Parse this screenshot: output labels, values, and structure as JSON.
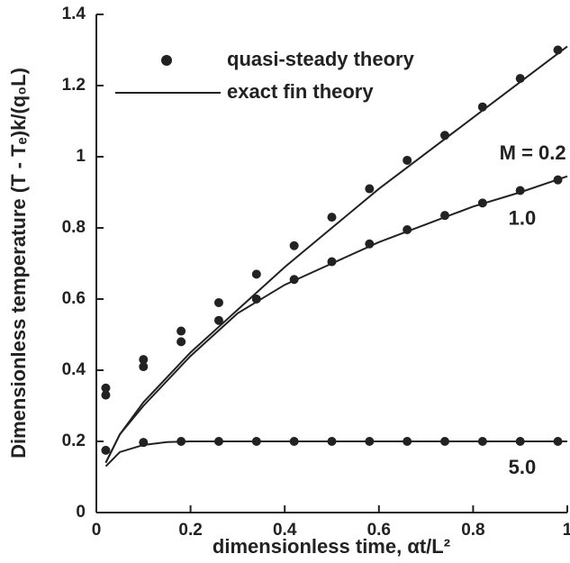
{
  "chart_data": {
    "type": "scatter-line",
    "x_label": "dimensionless time, αt/L²",
    "y_label": "Dimensionless temperature (T - Tₑ)k/(q₀L)",
    "xlim": [
      0,
      1
    ],
    "xticks": [
      0,
      0.2,
      0.4,
      0.6,
      0.8,
      1
    ],
    "ylim": [
      0,
      1.4
    ],
    "yticks": [
      0,
      0.2,
      0.4,
      0.6,
      0.8,
      1,
      1.2,
      1.4
    ],
    "legend": [
      {
        "label": "quasi-steady theory",
        "kind": "marker"
      },
      {
        "label": "exact fin theory",
        "kind": "line"
      }
    ],
    "series": [
      {
        "kind": "marker",
        "color": "#222",
        "x": [
          0.02,
          0.1,
          0.18,
          0.26,
          0.34,
          0.42,
          0.5,
          0.58,
          0.66,
          0.74,
          0.82,
          0.9,
          0.98
        ],
        "values": [
          0.35,
          0.43,
          0.51,
          0.59,
          0.67,
          0.75,
          0.83,
          0.91,
          0.99,
          1.06,
          1.14,
          1.22,
          1.3
        ]
      },
      {
        "kind": "marker",
        "color": "#222",
        "x": [
          0.02,
          0.1,
          0.18,
          0.26,
          0.34,
          0.42,
          0.5,
          0.58,
          0.66,
          0.74,
          0.82,
          0.9,
          0.98
        ],
        "values": [
          0.33,
          0.41,
          0.48,
          0.54,
          0.6,
          0.655,
          0.705,
          0.755,
          0.795,
          0.835,
          0.87,
          0.905,
          0.935
        ]
      },
      {
        "kind": "marker",
        "color": "#222",
        "x": [
          0.02,
          0.1,
          0.18,
          0.26,
          0.34,
          0.42,
          0.5,
          0.58,
          0.66,
          0.74,
          0.82,
          0.9,
          0.98
        ],
        "values": [
          0.175,
          0.197,
          0.2,
          0.2,
          0.2,
          0.2,
          0.2,
          0.2,
          0.2,
          0.2,
          0.2,
          0.2,
          0.2
        ]
      },
      {
        "kind": "line",
        "color": "#222",
        "label": "M = 0.2",
        "x": [
          0.02,
          0.05,
          0.1,
          0.2,
          0.3,
          0.4,
          0.5,
          0.6,
          0.7,
          0.8,
          0.9,
          1
        ],
        "values": [
          0.14,
          0.22,
          0.31,
          0.45,
          0.57,
          0.69,
          0.8,
          0.91,
          1.01,
          1.11,
          1.21,
          1.31
        ]
      },
      {
        "kind": "line",
        "color": "#222",
        "label": "1.0",
        "x": [
          0.02,
          0.05,
          0.1,
          0.2,
          0.3,
          0.4,
          0.5,
          0.6,
          0.7,
          0.8,
          0.9,
          1
        ],
        "values": [
          0.14,
          0.22,
          0.3,
          0.44,
          0.56,
          0.64,
          0.7,
          0.76,
          0.81,
          0.86,
          0.9,
          0.945
        ]
      },
      {
        "kind": "line",
        "color": "#222",
        "label": "5.0",
        "x": [
          0.02,
          0.05,
          0.1,
          0.15,
          0.2,
          0.4,
          0.6,
          0.8,
          1
        ],
        "values": [
          0.13,
          0.17,
          0.19,
          0.198,
          0.2,
          0.2,
          0.2,
          0.2,
          0.2
        ]
      }
    ]
  }
}
